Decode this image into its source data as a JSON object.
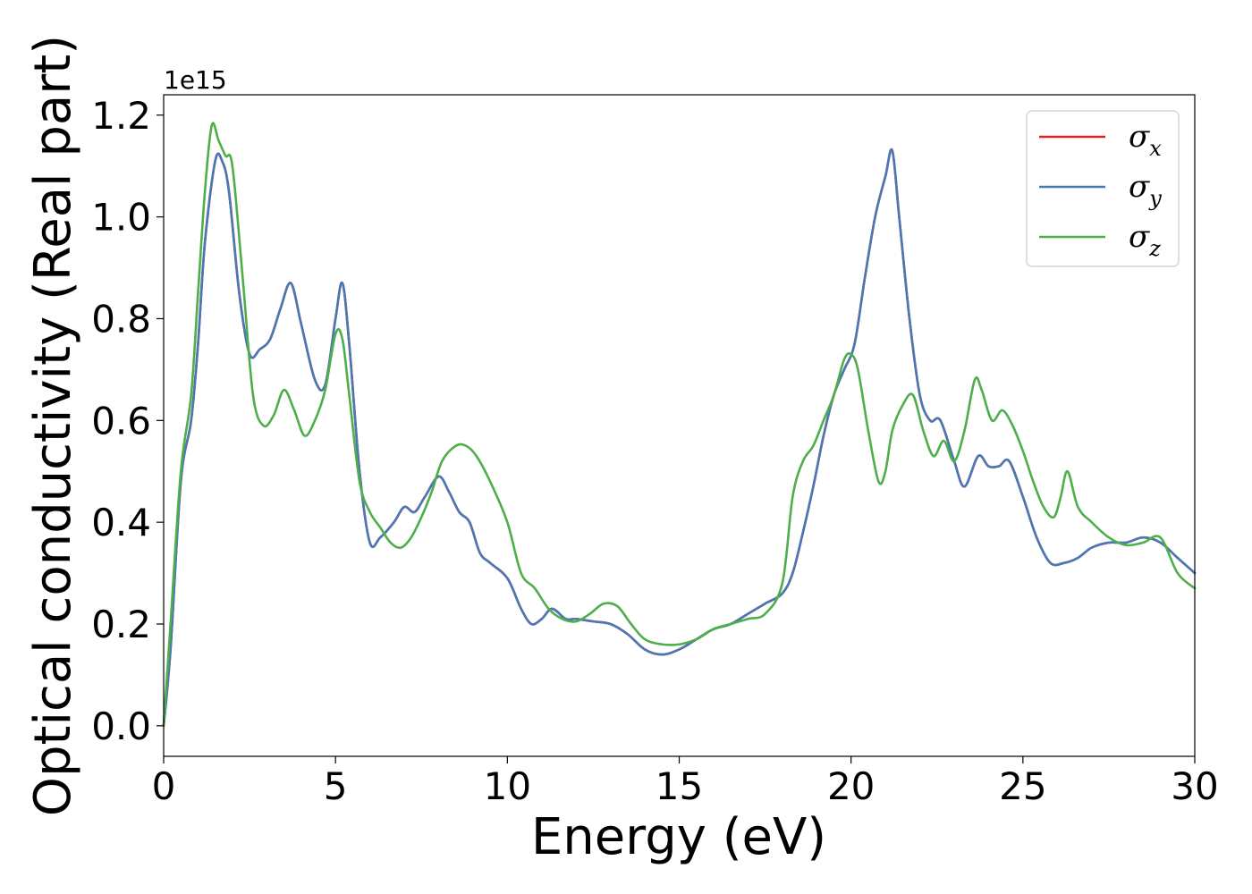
{
  "chart_data": {
    "type": "line",
    "title": "",
    "xlabel": "Energy (eV)",
    "ylabel": "Optical conductivity (Real part)",
    "y_offset_label": "1e15",
    "xlim": [
      0,
      30
    ],
    "ylim": [
      -0.06,
      1.24
    ],
    "xticks": [
      0,
      5,
      10,
      15,
      20,
      25,
      30
    ],
    "xtick_labels": [
      "0",
      "5",
      "10",
      "15",
      "20",
      "25",
      "30"
    ],
    "yticks": [
      0.0,
      0.2,
      0.4,
      0.6,
      0.8,
      1.0,
      1.2
    ],
    "ytick_labels": [
      "0.0",
      "0.2",
      "0.4",
      "0.6",
      "0.8",
      "1.0",
      "1.2"
    ],
    "grid": false,
    "legend_position": "top-right",
    "series": [
      {
        "name": "σ",
        "sub": "x",
        "color": "#d62728",
        "x": [
          0,
          0.2,
          0.5,
          0.8,
          1.0,
          1.2,
          1.5,
          1.7,
          1.9,
          2.2,
          2.5,
          2.8,
          3.1,
          3.4,
          3.7,
          4.0,
          4.4,
          4.7,
          5.0,
          5.2,
          5.4,
          5.7,
          6.0,
          6.3,
          6.7,
          7.0,
          7.3,
          7.6,
          8.0,
          8.3,
          8.6,
          8.9,
          9.2,
          9.5,
          10.0,
          10.4,
          10.7,
          11.0,
          11.3,
          11.7,
          12.0,
          12.5,
          13.0,
          13.5,
          14.0,
          14.5,
          15.0,
          15.5,
          16.0,
          16.5,
          17.0,
          17.5,
          18.0,
          18.3,
          18.6,
          18.9,
          19.2,
          19.5,
          19.8,
          20.1,
          20.4,
          20.7,
          21.0,
          21.2,
          21.4,
          21.7,
          22.0,
          22.3,
          22.6,
          23.0,
          23.3,
          23.7,
          24.0,
          24.3,
          24.6,
          25.0,
          25.4,
          25.8,
          26.2,
          26.6,
          27.0,
          27.5,
          28.0,
          28.5,
          29.0,
          29.5,
          30.0
        ],
        "y": [
          0.0,
          0.15,
          0.48,
          0.6,
          0.75,
          0.95,
          1.11,
          1.11,
          1.05,
          0.85,
          0.73,
          0.74,
          0.76,
          0.82,
          0.87,
          0.79,
          0.68,
          0.67,
          0.8,
          0.87,
          0.75,
          0.5,
          0.36,
          0.37,
          0.4,
          0.43,
          0.42,
          0.45,
          0.49,
          0.46,
          0.42,
          0.4,
          0.34,
          0.32,
          0.29,
          0.23,
          0.2,
          0.21,
          0.23,
          0.21,
          0.21,
          0.205,
          0.2,
          0.18,
          0.15,
          0.14,
          0.15,
          0.17,
          0.19,
          0.2,
          0.22,
          0.24,
          0.26,
          0.3,
          0.38,
          0.47,
          0.57,
          0.65,
          0.7,
          0.75,
          0.88,
          1.0,
          1.08,
          1.13,
          1.0,
          0.8,
          0.65,
          0.6,
          0.6,
          0.52,
          0.47,
          0.53,
          0.51,
          0.51,
          0.52,
          0.45,
          0.37,
          0.32,
          0.32,
          0.33,
          0.35,
          0.36,
          0.36,
          0.37,
          0.36,
          0.33,
          0.3
        ]
      },
      {
        "name": "σ",
        "sub": "y",
        "color": "#4a78b4",
        "x": [
          0,
          0.2,
          0.5,
          0.8,
          1.0,
          1.2,
          1.5,
          1.7,
          1.9,
          2.2,
          2.5,
          2.8,
          3.1,
          3.4,
          3.7,
          4.0,
          4.4,
          4.7,
          5.0,
          5.2,
          5.4,
          5.7,
          6.0,
          6.3,
          6.7,
          7.0,
          7.3,
          7.6,
          8.0,
          8.3,
          8.6,
          8.9,
          9.2,
          9.5,
          10.0,
          10.4,
          10.7,
          11.0,
          11.3,
          11.7,
          12.0,
          12.5,
          13.0,
          13.5,
          14.0,
          14.5,
          15.0,
          15.5,
          16.0,
          16.5,
          17.0,
          17.5,
          18.0,
          18.3,
          18.6,
          18.9,
          19.2,
          19.5,
          19.8,
          20.1,
          20.4,
          20.7,
          21.0,
          21.2,
          21.4,
          21.7,
          22.0,
          22.3,
          22.6,
          23.0,
          23.3,
          23.7,
          24.0,
          24.3,
          24.6,
          25.0,
          25.4,
          25.8,
          26.2,
          26.6,
          27.0,
          27.5,
          28.0,
          28.5,
          29.0,
          29.5,
          30.0
        ],
        "y": [
          0.0,
          0.15,
          0.48,
          0.6,
          0.75,
          0.95,
          1.11,
          1.11,
          1.05,
          0.85,
          0.73,
          0.74,
          0.76,
          0.82,
          0.87,
          0.79,
          0.68,
          0.67,
          0.8,
          0.87,
          0.75,
          0.5,
          0.36,
          0.37,
          0.4,
          0.43,
          0.42,
          0.45,
          0.49,
          0.46,
          0.42,
          0.4,
          0.34,
          0.32,
          0.29,
          0.23,
          0.2,
          0.21,
          0.23,
          0.21,
          0.21,
          0.205,
          0.2,
          0.18,
          0.15,
          0.14,
          0.15,
          0.17,
          0.19,
          0.2,
          0.22,
          0.24,
          0.26,
          0.3,
          0.38,
          0.47,
          0.57,
          0.65,
          0.7,
          0.75,
          0.88,
          1.0,
          1.08,
          1.13,
          1.0,
          0.8,
          0.65,
          0.6,
          0.6,
          0.52,
          0.47,
          0.53,
          0.51,
          0.51,
          0.52,
          0.45,
          0.37,
          0.32,
          0.32,
          0.33,
          0.35,
          0.36,
          0.36,
          0.37,
          0.36,
          0.33,
          0.3
        ]
      },
      {
        "name": "σ",
        "sub": "z",
        "color": "#4daf4a",
        "x": [
          0,
          0.2,
          0.5,
          0.8,
          1.0,
          1.2,
          1.4,
          1.6,
          1.8,
          2.0,
          2.3,
          2.6,
          2.9,
          3.2,
          3.5,
          3.8,
          4.1,
          4.4,
          4.7,
          5.0,
          5.2,
          5.4,
          5.7,
          6.0,
          6.3,
          6.6,
          6.9,
          7.2,
          7.5,
          7.8,
          8.1,
          8.5,
          8.8,
          9.1,
          9.5,
          10.0,
          10.4,
          10.8,
          11.2,
          11.6,
          12.0,
          12.4,
          12.8,
          13.2,
          13.6,
          14.0,
          14.5,
          15.0,
          15.5,
          16.0,
          16.5,
          17.0,
          17.5,
          18.0,
          18.3,
          18.6,
          18.9,
          19.2,
          19.5,
          19.8,
          20.0,
          20.2,
          20.5,
          20.8,
          21.0,
          21.2,
          21.5,
          21.8,
          22.1,
          22.4,
          22.7,
          23.0,
          23.3,
          23.6,
          23.8,
          24.1,
          24.4,
          24.7,
          25.0,
          25.3,
          25.6,
          25.9,
          26.1,
          26.3,
          26.6,
          27.0,
          27.5,
          28.0,
          28.5,
          29.0,
          29.5,
          30.0
        ],
        "y": [
          0.0,
          0.2,
          0.5,
          0.65,
          0.85,
          1.05,
          1.18,
          1.15,
          1.12,
          1.1,
          0.88,
          0.65,
          0.59,
          0.61,
          0.66,
          0.62,
          0.57,
          0.6,
          0.66,
          0.77,
          0.76,
          0.65,
          0.48,
          0.42,
          0.39,
          0.36,
          0.35,
          0.37,
          0.41,
          0.46,
          0.52,
          0.55,
          0.55,
          0.53,
          0.48,
          0.4,
          0.3,
          0.27,
          0.23,
          0.21,
          0.205,
          0.22,
          0.24,
          0.235,
          0.2,
          0.17,
          0.16,
          0.16,
          0.17,
          0.19,
          0.2,
          0.21,
          0.22,
          0.28,
          0.45,
          0.52,
          0.55,
          0.6,
          0.65,
          0.72,
          0.73,
          0.7,
          0.58,
          0.48,
          0.5,
          0.58,
          0.63,
          0.65,
          0.58,
          0.53,
          0.56,
          0.52,
          0.58,
          0.68,
          0.66,
          0.6,
          0.62,
          0.59,
          0.54,
          0.48,
          0.43,
          0.41,
          0.45,
          0.5,
          0.43,
          0.4,
          0.37,
          0.355,
          0.36,
          0.37,
          0.3,
          0.27
        ]
      }
    ]
  }
}
